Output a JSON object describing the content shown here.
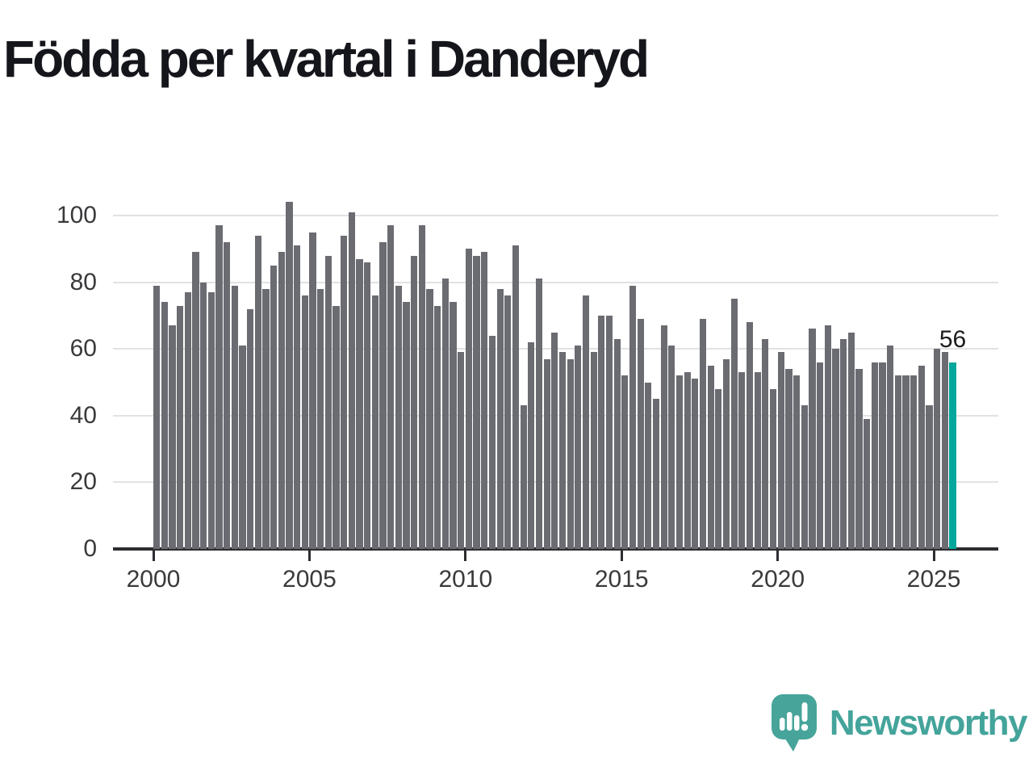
{
  "chart_data": {
    "type": "bar",
    "title": "Födda per kvartal i Danderyd",
    "x_unit": "quarter",
    "x_start": "2000-Q1",
    "x_end": "2025-Q3",
    "x_tick_labels": [
      "2000",
      "2005",
      "2010",
      "2015",
      "2020",
      "2025"
    ],
    "y_tick_labels": [
      "0",
      "20",
      "40",
      "60",
      "80",
      "100"
    ],
    "ylim": [
      0,
      110
    ],
    "grid": "horizontal",
    "legend": "none",
    "bar_color": "#6b6b72",
    "highlight": {
      "index": 102,
      "label": "56",
      "color": "#00a79a"
    },
    "values": [
      79,
      74,
      67,
      73,
      77,
      89,
      80,
      77,
      97,
      92,
      79,
      61,
      72,
      94,
      78,
      85,
      89,
      104,
      91,
      76,
      95,
      78,
      88,
      73,
      94,
      101,
      87,
      86,
      76,
      92,
      97,
      79,
      74,
      88,
      97,
      78,
      73,
      81,
      74,
      59,
      90,
      88,
      89,
      64,
      78,
      76,
      91,
      43,
      62,
      81,
      57,
      65,
      59,
      57,
      61,
      76,
      59,
      70,
      70,
      63,
      52,
      79,
      69,
      50,
      45,
      67,
      61,
      52,
      53,
      51,
      69,
      55,
      48,
      57,
      75,
      53,
      68,
      53,
      63,
      48,
      59,
      54,
      52,
      43,
      66,
      56,
      67,
      60,
      63,
      65,
      54,
      39,
      56,
      56,
      61,
      52,
      52,
      52,
      55,
      43,
      60,
      59,
      56
    ]
  },
  "logo": {
    "text": "Newsworthy",
    "icon": "newsworthy-speech-bubble-chart-icon",
    "color": "#44a49b"
  }
}
